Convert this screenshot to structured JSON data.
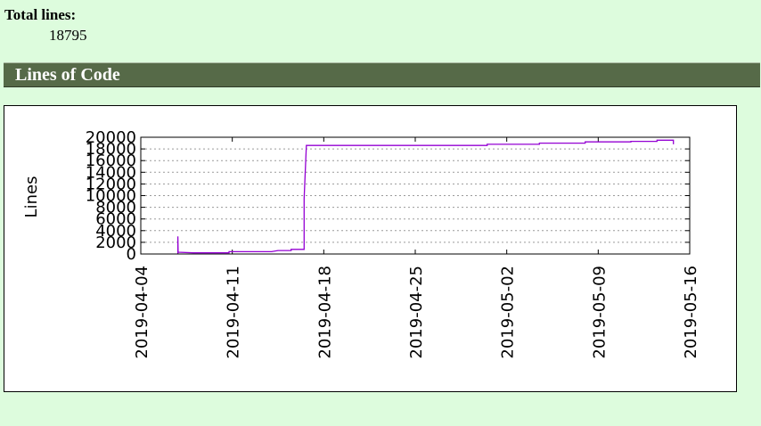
{
  "summary": {
    "total_lines_label": "Total lines:",
    "total_lines_value": "18795"
  },
  "section": {
    "title": "Lines of Code"
  },
  "colors": {
    "background": "#ddfcdd",
    "header": "#566a48",
    "series": "#9400d3"
  },
  "chart_data": {
    "type": "line",
    "ylabel": "Lines",
    "xlabel": "",
    "ylim": [
      0,
      20000
    ],
    "xlim": [
      "2019-04-04",
      "2019-05-16"
    ],
    "yticks": [
      "0",
      "2000",
      "4000",
      "6000",
      "8000",
      "10000",
      "12000",
      "14000",
      "16000",
      "18000",
      "20000"
    ],
    "xticks": [
      "2019-04-04",
      "2019-04-11",
      "2019-04-18",
      "2019-04-25",
      "2019-05-02",
      "2019-05-09",
      "2019-05-16"
    ],
    "grid": true,
    "series": [
      {
        "points": [
          [
            "2019-04-06 20:00",
            0
          ],
          [
            "2019-04-06 20:00",
            3000
          ],
          [
            "2019-04-06 20:30",
            300
          ],
          [
            "2019-04-08 00:00",
            200
          ],
          [
            "2019-04-10 18:00",
            200
          ],
          [
            "2019-04-10 18:00",
            400
          ],
          [
            "2019-04-14 00:00",
            400
          ],
          [
            "2019-04-14 12:00",
            600
          ],
          [
            "2019-04-15 12:00",
            600
          ],
          [
            "2019-04-15 12:00",
            800
          ],
          [
            "2019-04-16 12:00",
            800
          ],
          [
            "2019-04-16 12:00",
            9500
          ],
          [
            "2019-04-16 16:00",
            18600
          ],
          [
            "2019-04-30 12:00",
            18600
          ],
          [
            "2019-04-30 12:00",
            18800
          ],
          [
            "2019-05-04 12:00",
            18800
          ],
          [
            "2019-05-04 12:00",
            19000
          ],
          [
            "2019-05-08 00:00",
            19000
          ],
          [
            "2019-05-08 00:00",
            19200
          ],
          [
            "2019-05-11 12:00",
            19200
          ],
          [
            "2019-05-11 12:00",
            19300
          ],
          [
            "2019-05-13 12:00",
            19300
          ],
          [
            "2019-05-13 12:00",
            19500
          ],
          [
            "2019-05-14 18:00",
            19500
          ],
          [
            "2019-05-14 18:00",
            18795
          ]
        ]
      }
    ]
  }
}
